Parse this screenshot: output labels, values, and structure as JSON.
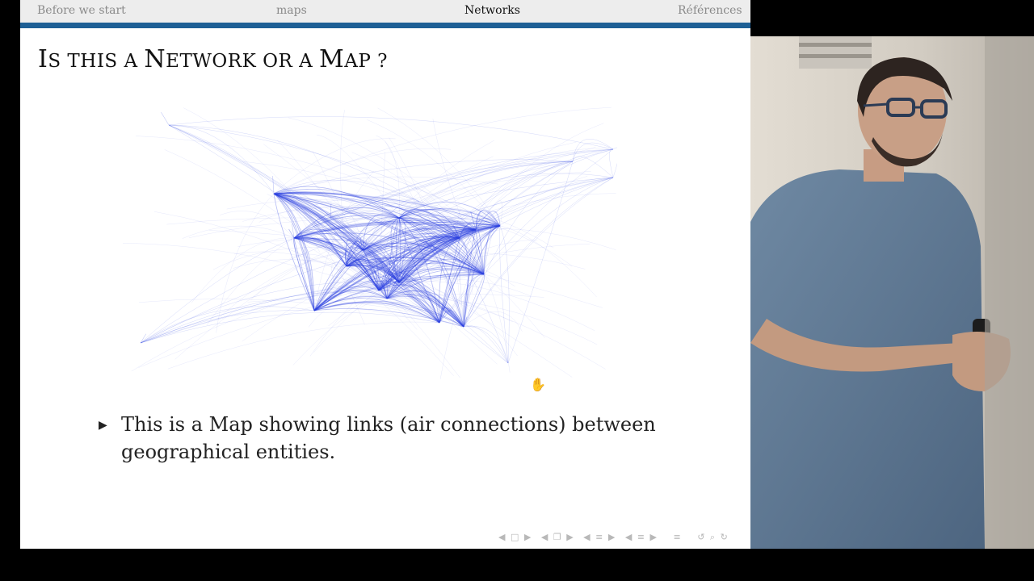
{
  "navbar": {
    "items": [
      {
        "label": "Before we start",
        "active": false
      },
      {
        "label": "maps",
        "active": false
      },
      {
        "label": "Networks",
        "active": true
      },
      {
        "label": "Références",
        "active": false
      }
    ]
  },
  "slide": {
    "title": {
      "w1a": "I",
      "w1b": "S THIS A ",
      "w2a": "N",
      "w2b": "ETWORK OR A ",
      "w3a": "M",
      "w3b": "AP ?"
    },
    "bullet": "This is a Map showing links (air connections) between geographical entities."
  },
  "beamer_nav_icons": [
    "left-arrow-icon",
    "frame-icon",
    "right-arrow-icon",
    "subsection-icon",
    "section-icon",
    "presentation-icon",
    "undo-icon",
    "search-icon",
    "redo-icon"
  ],
  "colors": {
    "accent": "#1d5f95",
    "map_lines": "#2a3fe0"
  }
}
